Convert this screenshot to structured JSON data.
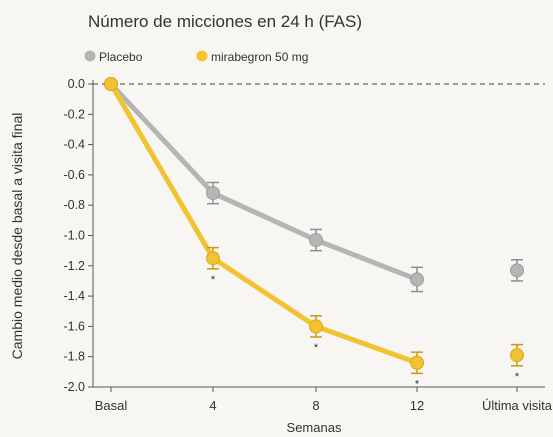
{
  "chart_data": {
    "type": "line",
    "title": "Número de micciones en 24 h (FAS)",
    "xlabel": "Semanas",
    "ylabel": "Cambio medio desde basal a visita final",
    "categories": [
      "Basal",
      "4",
      "8",
      "12",
      "Última visita"
    ],
    "ylim": [
      -2.0,
      0.0
    ],
    "yticks": [
      "0.0",
      "-0.2",
      "-0.4",
      "-0.6",
      "-0.8",
      "-1.0",
      "-1.2",
      "-1.4",
      "-1.6",
      "-1.8",
      "-2.0"
    ],
    "legend_position": "top-left",
    "reference_line": 0.0,
    "series": [
      {
        "name": "Placebo",
        "color": "#b5b5b5",
        "values": [
          0.0,
          -0.72,
          -1.03,
          -1.29,
          -1.23
        ],
        "errors": [
          0.0,
          0.07,
          0.07,
          0.08,
          0.07
        ],
        "connected_through_index": 3
      },
      {
        "name": "mirabegron 50 mg",
        "color": "#f2c230",
        "values": [
          0.0,
          -1.15,
          -1.6,
          -1.84,
          -1.79
        ],
        "errors": [
          0.0,
          0.07,
          0.07,
          0.07,
          0.07
        ],
        "connected_through_index": 3,
        "significance_marks": [
          "",
          "*",
          "*",
          "*",
          "*"
        ]
      }
    ]
  }
}
